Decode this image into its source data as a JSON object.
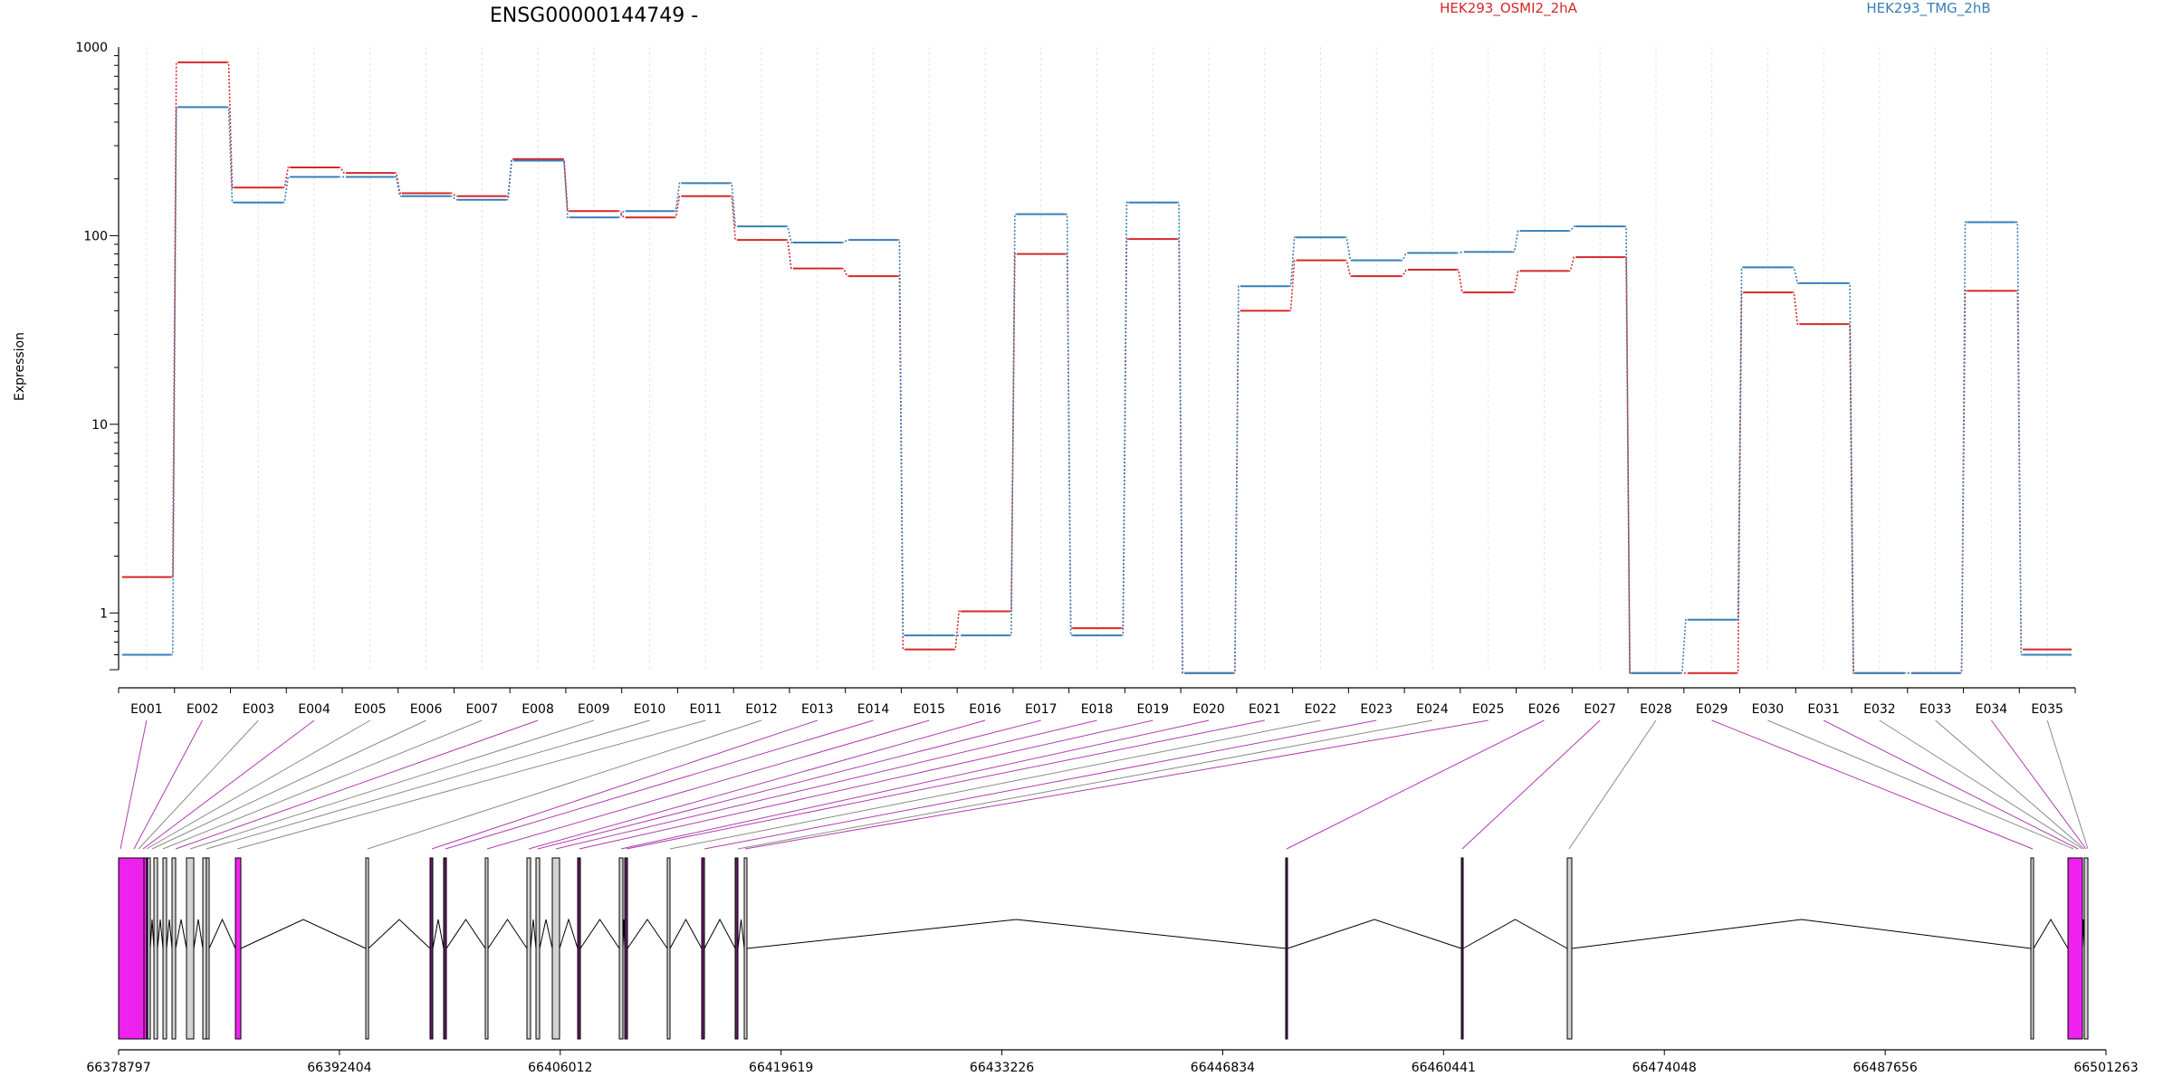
{
  "chart_data": {
    "type": "line",
    "title": "ENSG00000144749 -",
    "ylabel": "Expression",
    "yscale": "log",
    "ylim": [
      0.5,
      1000
    ],
    "yticks": [
      1,
      10,
      100,
      1000
    ],
    "ytick_labels": [
      "1",
      "10",
      "100",
      "1000"
    ],
    "grid": true,
    "legend_placement": "top",
    "categories": [
      "E001",
      "E002",
      "E003",
      "E004",
      "E005",
      "E006",
      "E007",
      "E008",
      "E009",
      "E010",
      "E011",
      "E012",
      "E013",
      "E014",
      "E015",
      "E016",
      "E017",
      "E018",
      "E019",
      "E020",
      "E021",
      "E022",
      "E023",
      "E024",
      "E025",
      "E026",
      "E027",
      "E028",
      "E029",
      "E030",
      "E031",
      "E032",
      "E033",
      "E034",
      "E035"
    ],
    "series": [
      {
        "name": "HEK293_OSMI2_2hA",
        "color": "#d62728",
        "values": [
          1.55,
          830,
          180,
          230,
          215,
          168,
          162,
          255,
          135,
          125,
          162,
          95,
          67,
          61,
          0.64,
          1.02,
          80,
          0.83,
          96,
          0.48,
          40,
          74,
          61,
          66,
          50,
          65,
          77,
          0.48,
          0.48,
          50,
          34,
          0.48,
          0.48,
          51,
          0.64
        ]
      },
      {
        "name": "HEK293_TMG_2hB",
        "color": "#377eb8",
        "values": [
          0.6,
          480,
          150,
          205,
          205,
          162,
          155,
          250,
          125,
          135,
          190,
          112,
          92,
          95,
          0.76,
          0.76,
          130,
          0.76,
          150,
          0.48,
          54,
          98,
          74,
          81,
          82,
          106,
          112,
          0.48,
          0.92,
          68,
          56,
          0.48,
          0.48,
          118,
          0.6
        ]
      }
    ],
    "gene_model": {
      "coordinate_ticks": [
        "66378797",
        "66392404",
        "66406012",
        "66419619",
        "66433226",
        "66446834",
        "66460441",
        "66474048",
        "66487656",
        "66501263"
      ],
      "exons_highlight": [
        "E001",
        "E002",
        "E004",
        "E008",
        "E013",
        "E014",
        "E015",
        "E016",
        "E017",
        "E018",
        "E019",
        "E020",
        "E021",
        "E023",
        "E025",
        "E026",
        "E027",
        "E029",
        "E031",
        "E034"
      ],
      "highlight_color": "#ee22ee",
      "exon_color": "#d3d3d3"
    }
  }
}
